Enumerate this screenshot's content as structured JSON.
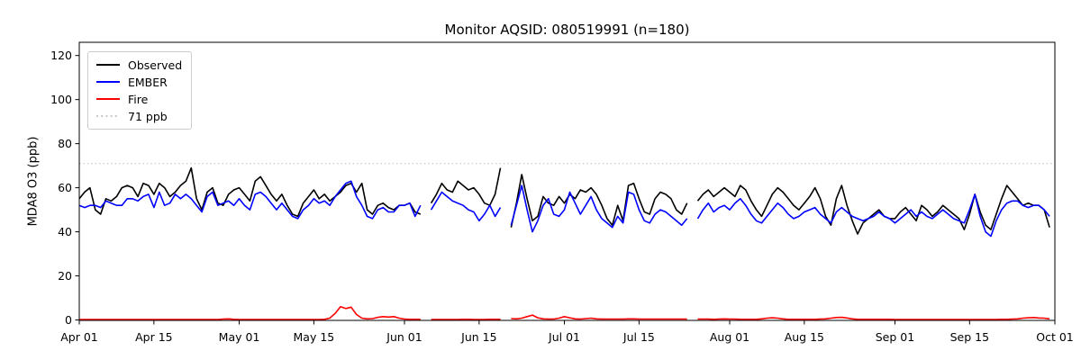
{
  "title": "Monitor AQSID: 080519991 (n=180)",
  "y_axis": {
    "label": "MDA8 O3 (ppb)"
  },
  "legend": {
    "items": [
      {
        "label": "Observed",
        "color": "#000000",
        "style": "solid"
      },
      {
        "label": "EMBER",
        "color": "#0000ff",
        "style": "solid"
      },
      {
        "label": "Fire",
        "color": "#ff0000",
        "style": "solid"
      },
      {
        "label": "71 ppb",
        "color": "#c8c8c8",
        "style": "dotted"
      }
    ]
  },
  "chart_data": {
    "type": "line",
    "title": "Monitor AQSID: 080519991 (n=180)",
    "xlabel": "",
    "ylabel": "MDA8 O3 (ppb)",
    "ylim": [
      0,
      126
    ],
    "yticks": [
      0,
      20,
      40,
      60,
      80,
      100,
      120
    ],
    "x_tick_labels": [
      "Apr 01",
      "Apr 15",
      "May 01",
      "May 15",
      "Jun 01",
      "Jun 15",
      "Jul 01",
      "Jul 15",
      "Aug 01",
      "Aug 15",
      "Sep 01",
      "Sep 15",
      "Oct 01"
    ],
    "x_tick_day_index": [
      0,
      14,
      30,
      44,
      61,
      75,
      91,
      105,
      122,
      136,
      153,
      167,
      183
    ],
    "axis_span_days": 183,
    "x_start_date": "Apr 01",
    "x_end_date": "Oct 01",
    "n_points_label": 180,
    "missing_dates": [
      "Jun 05",
      "Jun 20",
      "Jul 25"
    ],
    "grid": false,
    "legend_position": "upper left",
    "threshold_line": {
      "label": "71 ppb",
      "value": 71,
      "color": "#d0d0d0",
      "linestyle": "dotted"
    },
    "series": [
      {
        "name": "Observed",
        "color": "#000000",
        "values": [
          55,
          58,
          60,
          50,
          48,
          55,
          54,
          56,
          60,
          61,
          60,
          56,
          62,
          61,
          57,
          62,
          60,
          56,
          58,
          61,
          63,
          69,
          55,
          50,
          58,
          60,
          53,
          52,
          57,
          59,
          60,
          57,
          54,
          63,
          65,
          61,
          57,
          54,
          57,
          52,
          48,
          47,
          53,
          56,
          59,
          55,
          57,
          54,
          56,
          58,
          61,
          62,
          58,
          62,
          50,
          48,
          52,
          53,
          51,
          50,
          52,
          52,
          53,
          49,
          48,
          null,
          53,
          57,
          62,
          59,
          58,
          63,
          61,
          59,
          60,
          57,
          53,
          52,
          57,
          69,
          null,
          42,
          53,
          66,
          55,
          45,
          47,
          56,
          53,
          52,
          56,
          53,
          57,
          55,
          59,
          58,
          60,
          57,
          52,
          46,
          43,
          52,
          45,
          61,
          62,
          55,
          49,
          48,
          55,
          58,
          57,
          55,
          50,
          48,
          53,
          null,
          54,
          57,
          59,
          56,
          58,
          60,
          58,
          56,
          61,
          59,
          54,
          50,
          47,
          52,
          57,
          60,
          58,
          55,
          52,
          50,
          53,
          56,
          60,
          55,
          47,
          43,
          55,
          61,
          52,
          45,
          39,
          44,
          46,
          48,
          50,
          47,
          46,
          46,
          49,
          51,
          48,
          45,
          52,
          50,
          47,
          49,
          52,
          50,
          48,
          46,
          41,
          48,
          57,
          49,
          43,
          41,
          48,
          55,
          61,
          58,
          55,
          52,
          53,
          52,
          52,
          50,
          42
        ]
      },
      {
        "name": "EMBER",
        "color": "#0000ff",
        "values": [
          52,
          51,
          52,
          52,
          51,
          54,
          53,
          52,
          52,
          55,
          55,
          54,
          56,
          57,
          51,
          58,
          52,
          53,
          57,
          55,
          57,
          55,
          52,
          49,
          56,
          58,
          52,
          53,
          54,
          52,
          55,
          52,
          50,
          57,
          58,
          56,
          53,
          50,
          53,
          50,
          47,
          46,
          50,
          52,
          55,
          53,
          54,
          52,
          56,
          59,
          62,
          63,
          56,
          52,
          47,
          46,
          50,
          51,
          49,
          49,
          52,
          52,
          53,
          47,
          52,
          null,
          50,
          54,
          58,
          56,
          54,
          53,
          52,
          50,
          49,
          45,
          48,
          52,
          47,
          51,
          null,
          43,
          52,
          61,
          50,
          40,
          45,
          52,
          55,
          48,
          47,
          50,
          58,
          53,
          48,
          52,
          56,
          50,
          46,
          44,
          42,
          47,
          44,
          58,
          57,
          50,
          45,
          44,
          48,
          50,
          49,
          47,
          45,
          43,
          46,
          null,
          46,
          50,
          53,
          49,
          51,
          52,
          50,
          53,
          55,
          52,
          48,
          45,
          44,
          47,
          50,
          53,
          51,
          48,
          46,
          47,
          49,
          50,
          51,
          48,
          46,
          44,
          49,
          51,
          49,
          47,
          46,
          45,
          46,
          47,
          49,
          47,
          46,
          44,
          46,
          48,
          50,
          47,
          49,
          47,
          46,
          48,
          50,
          48,
          46,
          45,
          44,
          50,
          57,
          47,
          40,
          38,
          45,
          50,
          53,
          54,
          54,
          52,
          51,
          52,
          52,
          50,
          47
        ]
      },
      {
        "name": "Fire",
        "color": "#ff0000",
        "values": [
          0.2,
          0.2,
          0.2,
          0.2,
          0.2,
          0.2,
          0.2,
          0.2,
          0.2,
          0.2,
          0.2,
          0.2,
          0.2,
          0.2,
          0.2,
          0.2,
          0.2,
          0.2,
          0.2,
          0.2,
          0.2,
          0.2,
          0.2,
          0.2,
          0.2,
          0.2,
          0.2,
          0.4,
          0.5,
          0.3,
          0.2,
          0.2,
          0.2,
          0.2,
          0.2,
          0.2,
          0.2,
          0.2,
          0.2,
          0.2,
          0.2,
          0.2,
          0.2,
          0.2,
          0.2,
          0.2,
          0.3,
          0.8,
          3.0,
          6.0,
          5.2,
          5.8,
          2.5,
          0.8,
          0.5,
          0.6,
          1.2,
          1.5,
          1.3,
          1.5,
          0.8,
          0.4,
          0.3,
          0.3,
          0.3,
          null,
          0.2,
          0.2,
          0.2,
          0.2,
          0.2,
          0.2,
          0.3,
          0.3,
          0.2,
          0.2,
          0.2,
          0.3,
          0.3,
          0.3,
          null,
          0.6,
          0.5,
          0.8,
          1.5,
          2.2,
          1.0,
          0.5,
          0.4,
          0.4,
          0.8,
          1.5,
          1.0,
          0.5,
          0.4,
          0.6,
          0.8,
          0.5,
          0.4,
          0.4,
          0.4,
          0.4,
          0.4,
          0.5,
          0.5,
          0.4,
          0.4,
          0.4,
          0.4,
          0.4,
          0.4,
          0.4,
          0.4,
          0.4,
          0.4,
          null,
          0.4,
          0.4,
          0.4,
          0.3,
          0.4,
          0.5,
          0.4,
          0.4,
          0.3,
          0.3,
          0.3,
          0.3,
          0.5,
          0.8,
          1.0,
          0.8,
          0.5,
          0.3,
          0.3,
          0.3,
          0.3,
          0.3,
          0.3,
          0.4,
          0.5,
          0.8,
          1.1,
          1.2,
          0.9,
          0.5,
          0.3,
          0.3,
          0.3,
          0.3,
          0.3,
          0.3,
          0.3,
          0.2,
          0.2,
          0.2,
          0.2,
          0.2,
          0.2,
          0.2,
          0.2,
          0.2,
          0.2,
          0.2,
          0.2,
          0.2,
          0.2,
          0.2,
          0.2,
          0.2,
          0.2,
          0.2,
          0.2,
          0.3,
          0.3,
          0.4,
          0.5,
          0.8,
          1.0,
          1.1,
          0.9,
          0.8,
          0.5
        ]
      }
    ]
  }
}
